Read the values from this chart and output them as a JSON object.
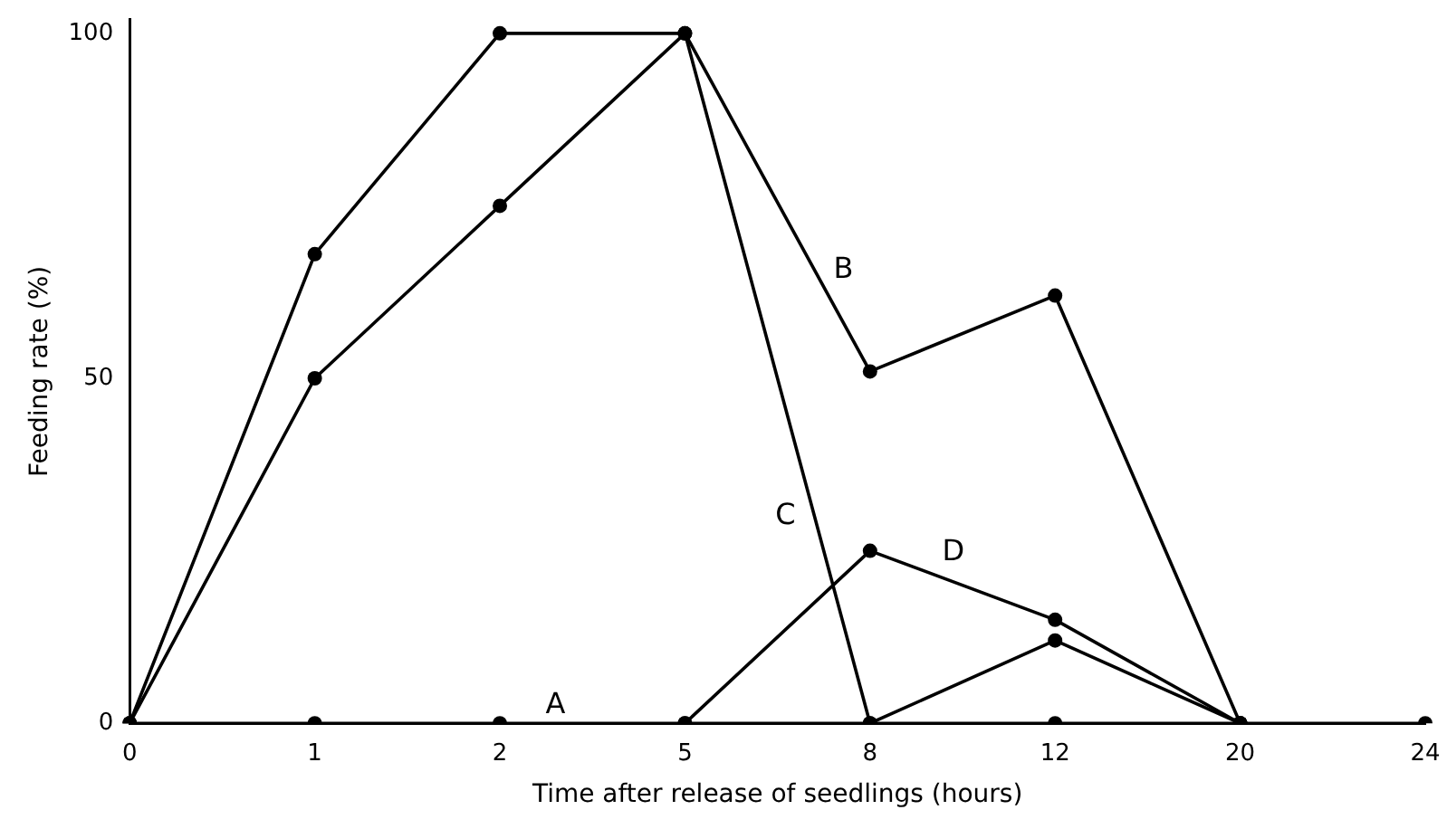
{
  "chart_data": {
    "type": "line",
    "xlabel": "Time after release of seedlings (hours)",
    "ylabel": "Feeding rate (%)",
    "categories": [
      "0",
      "1",
      "2",
      "5",
      "8",
      "12",
      "20",
      "24"
    ],
    "series": [
      {
        "name": "A",
        "color": "#000000",
        "values": [
          0,
          0,
          0,
          0,
          0,
          0,
          0,
          0
        ]
      },
      {
        "name": "B",
        "color": "#000000",
        "values": [
          0,
          68,
          100,
          100,
          51,
          62,
          0,
          null
        ]
      },
      {
        "name": "C",
        "color": "#000000",
        "values": [
          0,
          50,
          75,
          100,
          0,
          12,
          0,
          null
        ]
      },
      {
        "name": "D",
        "color": "#000000",
        "values": [
          null,
          null,
          null,
          0,
          25,
          15,
          0,
          null
        ]
      }
    ],
    "ylim": [
      0,
      102
    ],
    "yticks": [
      0,
      50,
      100
    ],
    "grid": false,
    "legend": false,
    "marker": "circle",
    "line_style": "solid"
  }
}
